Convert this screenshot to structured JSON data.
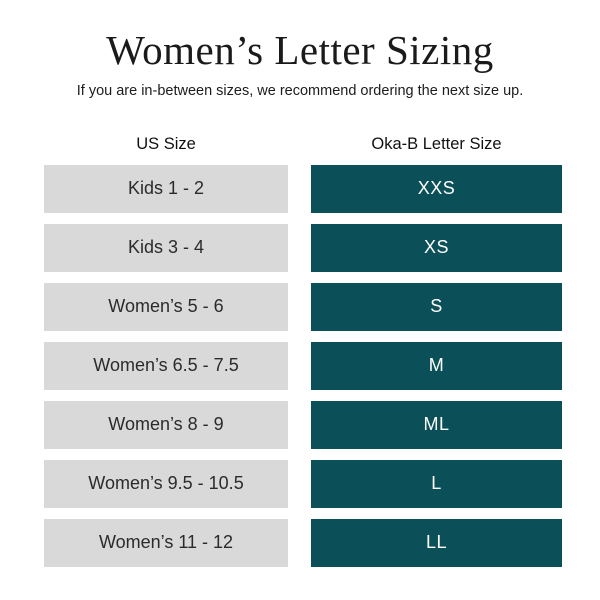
{
  "page": {
    "title": "Women’s Letter Sizing",
    "subtitle": "If you are in-between sizes, we recommend ordering the next size up."
  },
  "chart_data": {
    "type": "table",
    "title": "Women’s Letter Sizing",
    "subtitle": "If you are in-between sizes, we recommend ordering the next size up.",
    "columns": [
      "US Size",
      "Oka-B Letter Size"
    ],
    "rows": [
      [
        "Kids 1 - 2",
        "XXS"
      ],
      [
        "Kids 3 - 4",
        "XS"
      ],
      [
        "Women’s 5 - 6",
        "S"
      ],
      [
        "Women’s 6.5 - 7.5",
        "M"
      ],
      [
        "Women’s 8 - 9",
        "ML"
      ],
      [
        "Women’s 9.5 - 10.5",
        "L"
      ],
      [
        "Women’s 11 - 12",
        "LL"
      ]
    ]
  },
  "colors": {
    "us_cell_bg": "#d9d9d9",
    "letter_cell_bg": "#0b4f58",
    "letter_cell_text": "#ffffff",
    "title_text": "#1a1a1a",
    "body_text": "#2b2b2b",
    "bg": "#ffffff"
  }
}
